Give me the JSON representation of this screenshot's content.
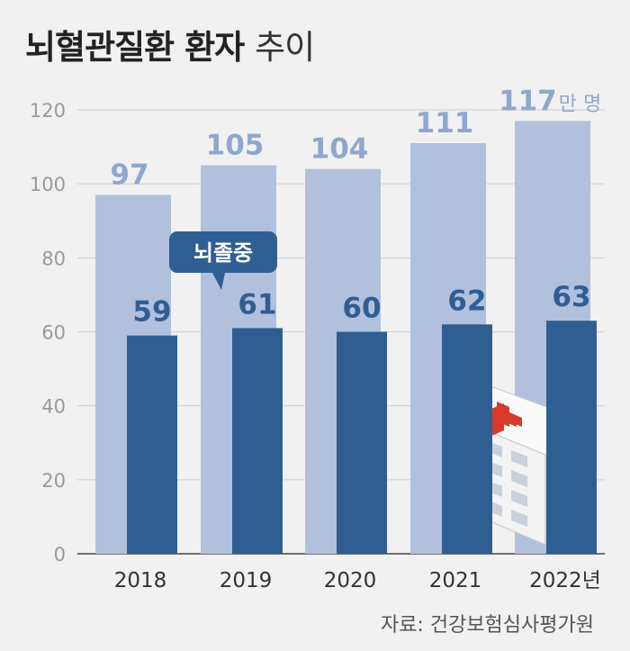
{
  "title": {
    "bold": "뇌혈관질환 환자",
    "light": "추이"
  },
  "source": "자료: 건강보험심사평가원",
  "colors": {
    "light_bar": "#b1c0dc",
    "dark_bar": "#2f5e93",
    "light_label": "#8fa7cf",
    "dark_label": "#2f5e93",
    "callout": "#2f5e93"
  },
  "callout_text": "뇌졸중",
  "icon": "hospital-building-icon",
  "chart_data": {
    "type": "bar",
    "categories": [
      "2018",
      "2019",
      "2020",
      "2021",
      "2022년"
    ],
    "series": [
      {
        "name": "",
        "values": [
          97,
          105,
          104,
          111,
          117
        ]
      },
      {
        "name": "뇌졸중",
        "values": [
          59,
          61,
          60,
          62,
          63
        ]
      }
    ],
    "value_labels": {
      "light": [
        "97",
        "105",
        "104",
        "111",
        "117"
      ],
      "dark": [
        "59",
        "61",
        "60",
        "62",
        "63"
      ]
    },
    "unit_label": "만 명",
    "ylim": [
      0,
      120
    ],
    "yticks": [
      0,
      20,
      40,
      60,
      80,
      100,
      120
    ],
    "grid": true,
    "xlabel": "",
    "ylabel": ""
  }
}
